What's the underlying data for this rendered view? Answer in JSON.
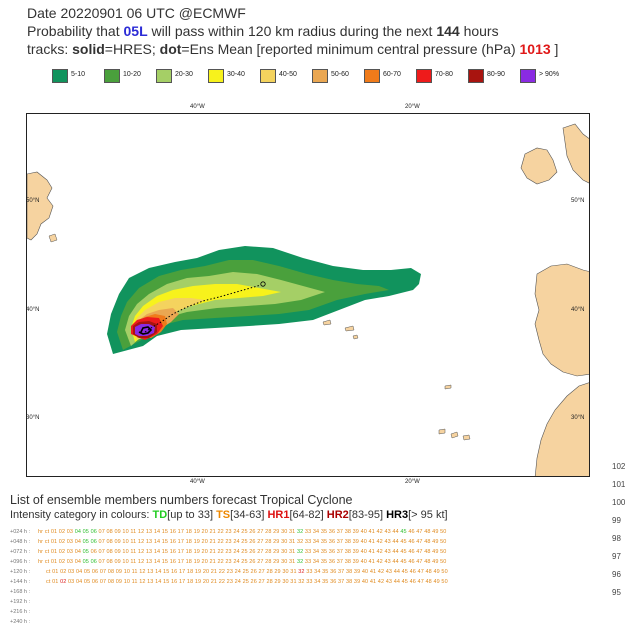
{
  "header": {
    "line1": "Date 20220901 06 UTC   @ECMWF",
    "line2_prefix": "Probability that ",
    "storm_id": "05L",
    "line2_mid": " will pass within 120 km radius during the next ",
    "hours": "144",
    "line2_suffix": " hours",
    "line3_prefix": "tracks: ",
    "solid": "solid",
    "line3_mid1": "=HRES; ",
    "dot": "dot",
    "line3_mid2": "=Ens Mean [reported minimum central pressure (hPa) ",
    "pressure": "1013",
    "line3_suffix": " ]"
  },
  "legend": [
    {
      "label": "5-10",
      "color": "#11935d"
    },
    {
      "label": "10-20",
      "color": "#4aa03c"
    },
    {
      "label": "20-30",
      "color": "#a5cf66"
    },
    {
      "label": "30-40",
      "color": "#f7f21c"
    },
    {
      "label": "40-50",
      "color": "#f4d35e"
    },
    {
      "label": "50-60",
      "color": "#eaa752"
    },
    {
      "label": "60-70",
      "color": "#f07b1a"
    },
    {
      "label": "70-80",
      "color": "#ee1b1b"
    },
    {
      "label": "80-90",
      "color": "#a8140f"
    },
    {
      "label": "> 90%",
      "color": "#8a2be2"
    }
  ],
  "map": {
    "lon_labels": [
      "40°W",
      "20°W"
    ],
    "lat_labels": [
      "50°N",
      "40°N",
      "30°N"
    ]
  },
  "ensemble": {
    "title": "List of ensemble members numbers forecast Tropical Cyclone",
    "intensity_prefix": "Intensity category in colours: ",
    "cat_td": "TD",
    "cat_td_range": "[up to 33]",
    "cat_ts": "TS",
    "cat_ts_range": "[34-63]",
    "cat_hr1": "HR1",
    "cat_hr1_range": "[64-82]",
    "cat_hr2": "HR2",
    "cat_hr2_range": "[83-95]",
    "cat_hr3": "HR3",
    "cat_hr3_range": "[> 95 kt]",
    "rows": [
      {
        "label": "+024 h :",
        "nums": "hr ct 01 02 03 04 05 06 07 08 09 10 11 12 13 14 15 16 17 18 19 20 21 22 23 24 25 26 27 28 29 30 31 32 33 34 35 36 37 38 39 40 41 42 43 44 45 46 47 48 49 50"
      },
      {
        "label": "+048 h :",
        "nums": "hr ct 01 02 03 04 05 06 07 08 09 10 11 12 13 14 15 16 17 18 19 20 21 22 23 24 25 26 27 28 29 30 31 32 33 34 35 36 37 38 39 40 41 42 43 44 45 46 47 48 49 50"
      },
      {
        "label": "+072 h :",
        "nums": "hr ct 01 02 03 04 05 06 07 08 09 10 11 12 13 14 15 16 17 18 19 20 21 22 23 24 25 26 27 28 29 30 31 32 33 34 35 36 37 38 39 40 41 42 43 44 45 46 47 48 49 50"
      },
      {
        "label": "+096 h :",
        "nums": "hr ct 01 02 03 04 05 06 07 08 09 10 11 12 13 14 15 16 17 18 19 20 21 22 23 24 25 26 27 28 29 30 31 32 33 34 35 36 37 38 39 40 41 42 43 44 45 46 47 48 49 50"
      },
      {
        "label": "+120 h :",
        "nums": "ct 01 02 03 04 05 06 07 08 09 10 11 12 13 14 15 16 17 18 19 20 21 22 23 24 25 26 27 28 29 30 31 32 33 34 35 36 37 38 39 40 41 42 43 44 45 46 47 48 49 50"
      },
      {
        "label": "+144 h :",
        "nums": "ct 01 02 03 04 05 06 07 08 09 10 11 12 13 14 15 16 17 18 19 20 21 22 23 24 25 26 27 28 29 30 31 32 33 34 35 36 37 38 39 40 41 42 43 44 45 46 47 48 49 50"
      },
      {
        "label": "+168 h :",
        "nums": ""
      },
      {
        "label": "+192 h :",
        "nums": ""
      },
      {
        "label": "+216 h :",
        "nums": ""
      },
      {
        "label": "+240 h :",
        "nums": ""
      }
    ]
  },
  "right_edge_labels": [
    "102",
    "101",
    "100",
    "99",
    "98",
    "97",
    "96",
    "95"
  ]
}
